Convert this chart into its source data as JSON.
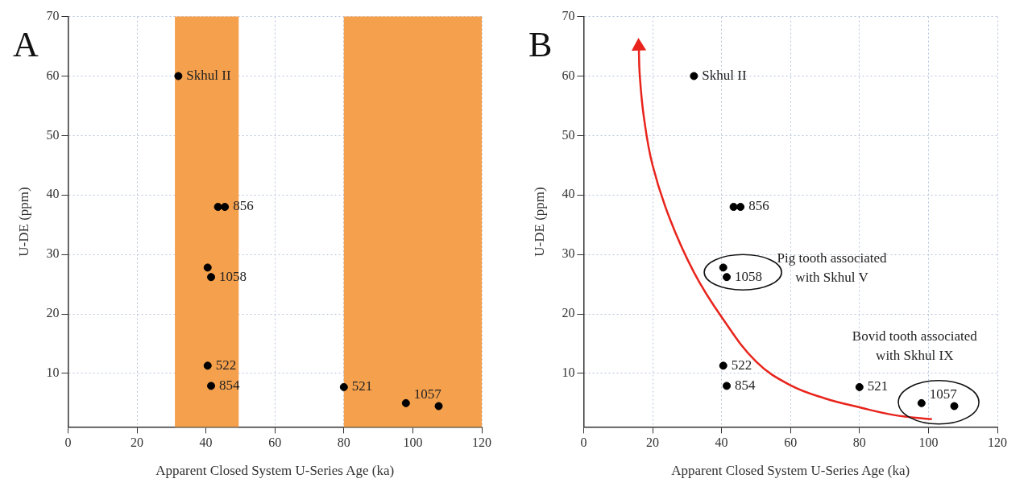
{
  "chart_data": [
    {
      "type": "scatter",
      "title": "A",
      "xlabel": "Apparent Closed System U-Series Age (ka)",
      "ylabel": "U-DE (ppm)",
      "xlim": [
        0,
        120
      ],
      "xticks": [
        0,
        20,
        40,
        60,
        80,
        100,
        120
      ],
      "ylim": [
        1,
        70
      ],
      "yticks": [
        10,
        20,
        30,
        40,
        50,
        60,
        70
      ],
      "grid": true,
      "marker": "circle",
      "legend": false,
      "series": [
        {
          "color": "#000000",
          "x": [
            32,
            43.5,
            45.5,
            40.5,
            41.5,
            40.5,
            41.5,
            80,
            98,
            107.5
          ],
          "values": [
            60,
            38,
            38,
            27.8,
            26.2,
            11.3,
            7.9,
            7.7,
            5,
            4.5
          ]
        }
      ],
      "bands": [
        {
          "axis": "x",
          "from": 31,
          "to": 49.5,
          "color": "#f5a04c"
        },
        {
          "axis": "x",
          "from": 80,
          "to": 120,
          "color": "#f5a04c"
        }
      ],
      "annotations": [
        {
          "text": "Skhul II",
          "x": 32,
          "y": 60
        },
        {
          "text": "856",
          "x": 45.5,
          "y": 38
        },
        {
          "text": "1058",
          "x": 41.5,
          "y": 26.2
        },
        {
          "text": "522",
          "x": 40.5,
          "y": 11.3
        },
        {
          "text": "854",
          "x": 41.5,
          "y": 7.9
        },
        {
          "text": "521",
          "x": 80,
          "y": 7.7
        },
        {
          "text": "1057",
          "x": 98,
          "y": 5
        }
      ]
    },
    {
      "type": "scatter",
      "title": "B",
      "xlabel": "Apparent Closed System U-Series Age (ka)",
      "ylabel": "U-DE (ppm)",
      "xlim": [
        0,
        120
      ],
      "xticks": [
        0,
        20,
        40,
        60,
        80,
        100,
        120
      ],
      "ylim": [
        1,
        70
      ],
      "yticks": [
        10,
        20,
        30,
        40,
        50,
        60,
        70
      ],
      "grid": true,
      "marker": "circle",
      "legend": false,
      "series": [
        {
          "color": "#000000",
          "x": [
            32,
            43.5,
            45.5,
            40.5,
            41.5,
            40.5,
            41.5,
            80,
            98,
            107.5
          ],
          "values": [
            60,
            38,
            38,
            27.8,
            26.2,
            11.3,
            7.9,
            7.7,
            5,
            4.5
          ]
        },
        {
          "type": "line",
          "marker": "none",
          "color": "#e8241c",
          "x": [
            101,
            90,
            80,
            70,
            60,
            50,
            40,
            32,
            25,
            20,
            17.5,
            16.3,
            16
          ],
          "values": [
            2.3,
            3,
            4.3,
            5.8,
            8,
            12,
            19.5,
            27,
            36,
            45,
            53,
            60,
            65
          ]
        }
      ],
      "annotations": [
        {
          "text": "Skhul II",
          "x": 32,
          "y": 60
        },
        {
          "text": "856",
          "x": 45.5,
          "y": 38
        },
        {
          "text": "1058",
          "x": 41.5,
          "y": 26.2
        },
        {
          "text": "522",
          "x": 40.5,
          "y": 11.3
        },
        {
          "text": "854",
          "x": 41.5,
          "y": 7.9
        },
        {
          "text": "521",
          "x": 80,
          "y": 7.7
        },
        {
          "text": "1057",
          "x": 98,
          "y": 5
        },
        "Pig tooth associated\nwith Skhul V",
        "Bovid tooth associated\nwith Skhul IX"
      ]
    }
  ]
}
